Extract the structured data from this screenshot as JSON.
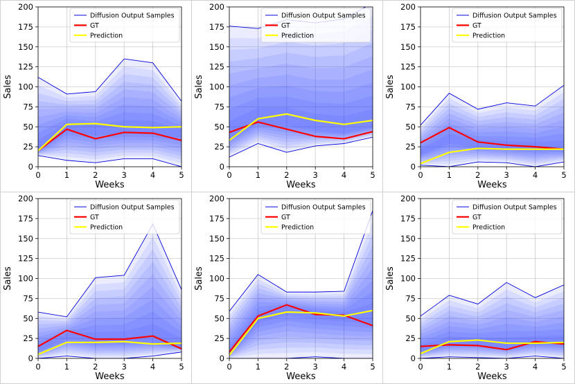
{
  "chart_data": [
    {
      "type": "line",
      "xlabel": "Weeks",
      "ylabel": "Sales",
      "x": [
        0,
        1,
        2,
        3,
        4,
        5
      ],
      "ylim": [
        0,
        200
      ],
      "yticks": [
        0,
        25,
        50,
        75,
        100,
        125,
        150,
        175,
        200
      ],
      "legend": [
        "Diffusion Output Samples",
        "GT",
        "Prediction"
      ],
      "legend_loc": "top-right",
      "series": [
        {
          "name": "GT",
          "values": [
            20,
            47,
            35,
            43,
            42,
            33
          ]
        },
        {
          "name": "Prediction",
          "values": [
            20,
            53,
            54,
            50,
            49,
            50
          ]
        },
        {
          "name": "Diffusion Output Samples upper",
          "values": [
            112,
            91,
            94,
            135,
            130,
            82
          ]
        },
        {
          "name": "Diffusion Output Samples lower",
          "values": [
            14,
            8,
            5,
            10,
            10,
            0
          ]
        }
      ]
    },
    {
      "type": "line",
      "xlabel": "Weeks",
      "ylabel": "Sales",
      "x": [
        0,
        1,
        2,
        3,
        4,
        5
      ],
      "ylim": [
        0,
        200
      ],
      "yticks": [
        0,
        25,
        50,
        75,
        100,
        125,
        150,
        175,
        200
      ],
      "legend": [
        "Diffusion Output Samples",
        "GT",
        "Prediction"
      ],
      "legend_loc": "top-right",
      "series": [
        {
          "name": "GT",
          "values": [
            43,
            56,
            47,
            38,
            35,
            44
          ]
        },
        {
          "name": "Prediction",
          "values": [
            33,
            60,
            66,
            58,
            53,
            58
          ]
        },
        {
          "name": "Diffusion Output Samples upper",
          "values": [
            176,
            173,
            184,
            180,
            185,
            205
          ]
        },
        {
          "name": "Diffusion Output Samples lower",
          "values": [
            12,
            29,
            18,
            26,
            29,
            37
          ]
        }
      ]
    },
    {
      "type": "line",
      "xlabel": "Weeks",
      "ylabel": "Sales",
      "x": [
        0,
        1,
        2,
        3,
        4,
        5
      ],
      "ylim": [
        0,
        200
      ],
      "yticks": [
        0,
        25,
        50,
        75,
        100,
        125,
        150,
        175,
        200
      ],
      "legend": [
        "Diffusion Output Samples",
        "GT",
        "Prediction"
      ],
      "legend_loc": "top-right",
      "series": [
        {
          "name": "GT",
          "values": [
            30,
            49,
            31,
            27,
            25,
            22
          ]
        },
        {
          "name": "Prediction",
          "values": [
            4,
            18,
            23,
            22,
            22,
            22
          ]
        },
        {
          "name": "Diffusion Output Samples upper",
          "values": [
            52,
            92,
            72,
            80,
            76,
            102
          ]
        },
        {
          "name": "Diffusion Output Samples lower",
          "values": [
            2,
            0,
            6,
            5,
            0,
            6
          ]
        }
      ]
    },
    {
      "type": "line",
      "xlabel": "Weeks",
      "ylabel": "Sales",
      "x": [
        0,
        1,
        2,
        3,
        4,
        5
      ],
      "ylim": [
        0,
        200
      ],
      "yticks": [
        0,
        25,
        50,
        75,
        100,
        125,
        150,
        175,
        200
      ],
      "legend": [
        "Diffusion Output Samples",
        "GT",
        "Prediction"
      ],
      "legend_loc": "top-right",
      "series": [
        {
          "name": "GT",
          "values": [
            15,
            35,
            24,
            24,
            28,
            12
          ]
        },
        {
          "name": "Prediction",
          "values": [
            5,
            20,
            20,
            21,
            18,
            19
          ]
        },
        {
          "name": "Diffusion Output Samples upper",
          "values": [
            58,
            52,
            101,
            104,
            168,
            86
          ]
        },
        {
          "name": "Diffusion Output Samples lower",
          "values": [
            0,
            3,
            0,
            0,
            3,
            8
          ]
        }
      ]
    },
    {
      "type": "line",
      "xlabel": "Weeks",
      "ylabel": "Sales",
      "x": [
        0,
        1,
        2,
        3,
        4,
        5
      ],
      "ylim": [
        0,
        200
      ],
      "yticks": [
        0,
        25,
        50,
        75,
        100,
        125,
        150,
        175,
        200
      ],
      "legend": [
        "Diffusion Output Samples",
        "GT",
        "Prediction"
      ],
      "legend_loc": "top-right",
      "series": [
        {
          "name": "GT",
          "values": [
            8,
            53,
            67,
            55,
            54,
            41
          ]
        },
        {
          "name": "Prediction",
          "values": [
            4,
            50,
            58,
            57,
            53,
            60
          ]
        },
        {
          "name": "Diffusion Output Samples upper",
          "values": [
            59,
            105,
            83,
            83,
            84,
            185
          ]
        },
        {
          "name": "Diffusion Output Samples lower",
          "values": [
            0,
            0,
            0,
            2,
            0,
            0
          ]
        }
      ]
    },
    {
      "type": "line",
      "xlabel": "Weeks",
      "ylabel": "Sales",
      "x": [
        0,
        1,
        2,
        3,
        4,
        5
      ],
      "ylim": [
        0,
        200
      ],
      "yticks": [
        0,
        25,
        50,
        75,
        100,
        125,
        150,
        175,
        200
      ],
      "legend": [
        "Diffusion Output Samples",
        "GT",
        "Prediction"
      ],
      "legend_loc": "top-right",
      "series": [
        {
          "name": "GT",
          "values": [
            15,
            17,
            16,
            11,
            21,
            18
          ]
        },
        {
          "name": "Prediction",
          "values": [
            6,
            21,
            23,
            19,
            19,
            20
          ]
        },
        {
          "name": "Diffusion Output Samples upper",
          "values": [
            53,
            79,
            68,
            95,
            76,
            92
          ]
        },
        {
          "name": "Diffusion Output Samples lower",
          "values": [
            0,
            2,
            1,
            0,
            3,
            0
          ]
        }
      ]
    }
  ],
  "colors": {
    "gt": "#ff0000",
    "prediction": "#ffff00",
    "samples_line": "#0000dd",
    "samples_fill": "#2233ff",
    "grid": "#cccccc",
    "panel_border": "#d0d0d0"
  }
}
